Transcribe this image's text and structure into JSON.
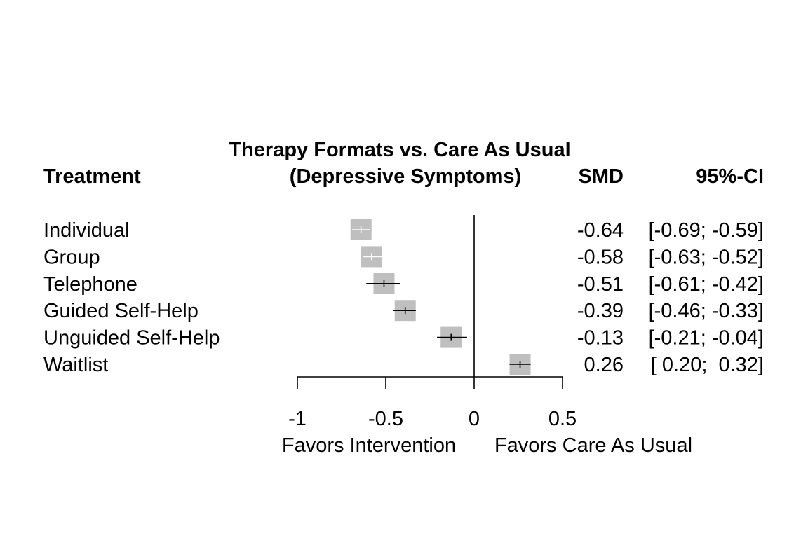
{
  "chart_data": {
    "type": "forest",
    "title_line1": "Therapy Formats vs. Care As Usual",
    "title_line2": "(Depressive Symptoms)",
    "headers": {
      "treatment": "Treatment",
      "smd": "SMD",
      "ci": "95%-CI"
    },
    "rows": [
      {
        "label": "Individual",
        "smd": -0.64,
        "lower": -0.69,
        "upper": -0.59,
        "smd_text": "-0.64",
        "ci_text": "[-0.69; -0.59]",
        "inner_color": "#ffffff"
      },
      {
        "label": "Group",
        "smd": -0.58,
        "lower": -0.63,
        "upper": -0.52,
        "smd_text": "-0.58",
        "ci_text": "[-0.63; -0.52]",
        "inner_color": "#ffffff"
      },
      {
        "label": "Telephone",
        "smd": -0.51,
        "lower": -0.61,
        "upper": -0.42,
        "smd_text": "-0.51",
        "ci_text": "[-0.61; -0.42]",
        "inner_color": "#000000"
      },
      {
        "label": "Guided Self-Help",
        "smd": -0.39,
        "lower": -0.46,
        "upper": -0.33,
        "smd_text": "-0.39",
        "ci_text": "[-0.46; -0.33]",
        "inner_color": "#000000"
      },
      {
        "label": "Unguided Self-Help",
        "smd": -0.13,
        "lower": -0.21,
        "upper": -0.04,
        "smd_text": "-0.13",
        "ci_text": "[-0.21; -0.04]",
        "inner_color": "#000000"
      },
      {
        "label": "Waitlist",
        "smd": 0.26,
        "lower": 0.2,
        "upper": 0.32,
        "smd_text": "0.26",
        "ci_text": "[ 0.20;  0.32]",
        "inner_color": "#000000"
      }
    ],
    "xlim": [
      -1,
      0.5
    ],
    "xticks": [
      {
        "value": -1,
        "label": "-1"
      },
      {
        "value": -0.5,
        "label": "-0.5"
      },
      {
        "value": 0,
        "label": "0"
      },
      {
        "value": 0.5,
        "label": "0.5"
      }
    ],
    "reference_line": 0,
    "label_left": "Favors Intervention",
    "label_right": "Favors Care As Usual",
    "box_color": "#bfbfbf"
  }
}
